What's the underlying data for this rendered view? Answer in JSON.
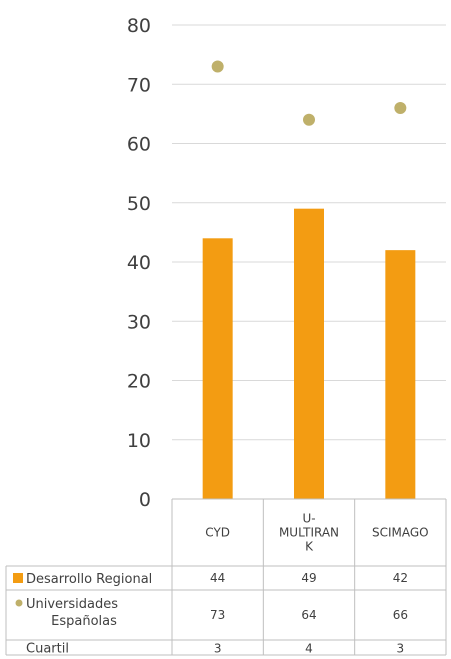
{
  "chart_data": {
    "type": "bar",
    "categories": [
      "CYD",
      "U-MULTIRANK",
      "SCIMAGO"
    ],
    "category_lines": [
      [
        "CYD"
      ],
      [
        "U-",
        "MULTIRAN",
        "K"
      ],
      [
        "SCIMAGO"
      ]
    ],
    "series": [
      {
        "name": "Desarrollo Regional",
        "kind": "bar",
        "values": [
          44,
          49,
          42
        ],
        "color": "#F39C12"
      },
      {
        "name": "Universidades Españolas",
        "name_lines": [
          "Universidades",
          "Españolas"
        ],
        "kind": "dot",
        "values": [
          73,
          64,
          66
        ],
        "color": "#BFB06A"
      }
    ],
    "table_extra_rows": [
      {
        "label": "Cuartil",
        "values": [
          3,
          4,
          3
        ]
      }
    ],
    "ylim": [
      0,
      80
    ],
    "yticks": [
      0,
      10,
      20,
      30,
      40,
      50,
      60,
      70,
      80
    ],
    "grid": true,
    "legend": "data-table",
    "title": "",
    "xlabel": "",
    "ylabel": ""
  }
}
